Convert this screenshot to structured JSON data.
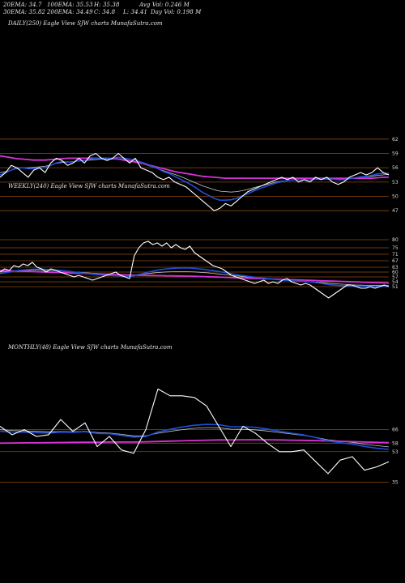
{
  "header": {
    "ema20": "20EMA: 34.7",
    "ema100": "100EMA: 35.53",
    "high": "H: 35.38",
    "avg_vol": "Avg Vol: 0.246  M",
    "ema30": "30EMA: 35.82",
    "ema200": "200EMA: 34.49",
    "close": "C: 34.8",
    "low": "L: 34.41",
    "day_vol": "Day Vol: 0.198  M"
  },
  "panels": {
    "daily_label": "DAILY(250) Eagle   View  SJW charts MunafaSutra.com",
    "weekly_label": "WEEKLY(240) Eagle   View  SJW charts MunafaSutra.com",
    "monthly_label": "MONTHLY(48) Eagle   View  SJW charts MunafaSutra.com"
  },
  "colors": {
    "background": "#000000",
    "price": "#ffffff",
    "ema_short": "#1f4fd6",
    "ema_long": "#d633d6",
    "ema_mid": "#c8c8c8",
    "level_line": "#8a4a14"
  },
  "chart_data": [
    {
      "type": "line",
      "title": "DAILY(250)",
      "ylim": [
        45,
        64
      ],
      "levels": [
        62,
        59,
        56,
        53,
        50,
        47
      ],
      "tick_labels": [
        "62",
        "59",
        "56",
        "53",
        "50",
        "47"
      ],
      "series": [
        {
          "role": "price",
          "values": [
            54,
            55,
            56.5,
            56,
            55,
            54,
            55.5,
            56,
            55,
            57,
            58,
            57.5,
            56.5,
            57,
            58,
            57,
            58.5,
            59,
            58,
            57.5,
            58,
            59,
            58,
            57,
            58,
            56,
            55.5,
            55,
            54,
            53.5,
            54,
            53,
            52.5,
            52,
            51,
            50,
            49,
            48,
            47,
            47.5,
            48.5,
            48,
            49,
            50,
            51,
            51.5,
            52,
            52.5,
            53,
            53.5,
            54,
            53.5,
            54,
            53,
            53.5,
            53,
            54,
            53.5,
            54,
            53,
            52.5,
            53,
            54,
            54.5,
            55,
            54.5,
            55,
            56,
            55,
            54.5
          ]
        },
        {
          "role": "ema-short",
          "values": [
            54.5,
            55,
            55.5,
            56,
            56,
            55.8,
            55.8,
            56,
            56,
            56.5,
            57,
            57.3,
            57.2,
            57.2,
            57.5,
            57.5,
            57.8,
            58,
            58,
            58,
            58,
            58.2,
            58,
            57.8,
            57.6,
            57.2,
            56.8,
            56.3,
            55.8,
            55.2,
            54.8,
            54.2,
            53.6,
            53,
            52.4,
            51.6,
            50.8,
            50.2,
            49.6,
            49.2,
            49.2,
            49.3,
            49.6,
            50.1,
            50.6,
            51.1,
            51.6,
            52,
            52.4,
            52.8,
            53.1,
            53.3,
            53.5,
            53.5,
            53.5,
            53.5,
            53.6,
            53.6,
            53.7,
            53.6,
            53.5,
            53.5,
            53.7,
            53.9,
            54.1,
            54.2,
            54.4,
            54.7,
            54.8,
            54.8
          ]
        },
        {
          "role": "ema-mid",
          "values": [
            55,
            55.2,
            55.5,
            55.8,
            56,
            56,
            56.1,
            56.2,
            56.3,
            56.6,
            56.9,
            57.1,
            57.2,
            57.3,
            57.4,
            57.5,
            57.6,
            57.7,
            57.8,
            57.8,
            57.8,
            57.8,
            57.7,
            57.5,
            57.3,
            57,
            56.6,
            56.2,
            55.8,
            55.4,
            55,
            54.6,
            54.2,
            53.7,
            53.2,
            52.7,
            52.2,
            51.8,
            51.4,
            51.1,
            51,
            50.9,
            51,
            51.2,
            51.5,
            51.8,
            52.1,
            52.4,
            52.7,
            53,
            53.2,
            53.3,
            53.4,
            53.5,
            53.5,
            53.5,
            53.6,
            53.6,
            53.6,
            53.6,
            53.6,
            53.6,
            53.7,
            53.8,
            54,
            54.1,
            54.2,
            54.4,
            54.5,
            54.6
          ]
        },
        {
          "role": "ema-long",
          "values": [
            58.5,
            58.3,
            58.1,
            57.9,
            57.8,
            57.7,
            57.6,
            57.6,
            57.6,
            57.7,
            57.8,
            57.9,
            58,
            58,
            58,
            58,
            58,
            58,
            58,
            58,
            57.9,
            57.8,
            57.6,
            57.4,
            57.2,
            57,
            56.7,
            56.4,
            56.1,
            55.8,
            55.5,
            55.2,
            55,
            54.8,
            54.6,
            54.4,
            54.2,
            54.1,
            54,
            53.9,
            53.8,
            53.8,
            53.8,
            53.8,
            53.8,
            53.8,
            53.8,
            53.8,
            53.8,
            53.8,
            53.8,
            53.8,
            53.8,
            53.8,
            53.8,
            53.8,
            53.8,
            53.8,
            53.8,
            53.8,
            53.8,
            53.8,
            53.8,
            53.8,
            53.8,
            53.8,
            53.8,
            53.9,
            54,
            54
          ]
        }
      ]
    },
    {
      "type": "line",
      "title": "WEEKLY(240)",
      "ylim": [
        28,
        82
      ],
      "levels": [
        80,
        75,
        71,
        67,
        63,
        60,
        57,
        54,
        51
      ],
      "tick_labels": [
        "80",
        "75",
        "71",
        "67",
        "63",
        "60",
        "57",
        "54",
        "51"
      ],
      "series": [
        {
          "role": "price",
          "values": [
            60,
            62,
            61,
            64,
            63,
            65,
            64,
            66,
            63,
            62,
            60,
            62,
            61,
            60,
            59,
            58,
            57,
            58,
            57,
            56,
            55,
            56,
            57,
            58,
            59,
            60,
            58,
            57,
            56,
            70,
            75,
            78,
            79,
            77,
            78,
            76,
            78,
            75,
            77,
            75,
            74,
            76,
            72,
            70,
            68,
            66,
            64,
            63,
            62,
            60,
            58,
            57,
            56,
            55,
            54,
            53,
            54,
            55,
            53,
            54,
            53,
            55,
            56,
            54,
            53,
            52,
            53,
            52,
            50,
            48,
            46,
            44,
            46,
            48,
            50,
            52,
            52,
            51,
            50,
            50,
            51,
            50,
            51,
            52,
            51
          ]
        },
        {
          "role": "ema-short",
          "values": [
            59,
            59.5,
            60,
            60.5,
            61,
            61.3,
            61.5,
            61.7,
            61.8,
            61.8,
            61.6,
            61.5,
            61.3,
            61,
            60.7,
            60.4,
            60,
            59.7,
            59.3,
            59,
            58.7,
            58.4,
            58.2,
            58,
            57.9,
            57.8,
            57.7,
            57.5,
            57.3,
            57.8,
            58.5,
            59.2,
            60,
            60.6,
            61.2,
            61.6,
            62,
            62.2,
            62.4,
            62.5,
            62.5,
            62.5,
            62.3,
            62,
            61.7,
            61.3,
            60.9,
            60.5,
            60,
            59.5,
            59,
            58.5,
            58,
            57.6,
            57.2,
            56.8,
            56.5,
            56.2,
            55.9,
            55.6,
            55.3,
            55.1,
            54.9,
            54.7,
            54.5,
            54.3,
            54.1,
            53.9,
            53.6,
            53.2,
            52.8,
            52.3,
            52,
            51.8,
            51.6,
            51.5,
            51.4,
            51.3,
            51.2,
            51.1,
            51.1,
            51.1,
            51.1,
            51.2,
            51.2
          ]
        },
        {
          "role": "ema-mid",
          "values": [
            60,
            60.2,
            60.4,
            60.6,
            60.8,
            61,
            61.1,
            61.2,
            61.2,
            61.2,
            61.1,
            61,
            60.9,
            60.7,
            60.5,
            60.3,
            60.1,
            59.9,
            59.7,
            59.5,
            59.3,
            59.1,
            58.9,
            58.7,
            58.6,
            58.5,
            58.4,
            58.3,
            58.2,
            58.3,
            58.5,
            58.8,
            59.1,
            59.4,
            59.7,
            59.9,
            60.1,
            60.2,
            60.3,
            60.3,
            60.3,
            60.2,
            60.1,
            59.9,
            59.7,
            59.5,
            59.2,
            58.9,
            58.6,
            58.3,
            58,
            57.7,
            57.4,
            57.1,
            56.8,
            56.5,
            56.2,
            56,
            55.8,
            55.6,
            55.4,
            55.2,
            55,
            54.8,
            54.6,
            54.4,
            54.2,
            54,
            53.8,
            53.6,
            53.4,
            53.1,
            52.9,
            52.7,
            52.5,
            52.3,
            52.1,
            52,
            51.9,
            51.8,
            51.7,
            51.7,
            51.7,
            51.7,
            51.7
          ]
        },
        {
          "role": "ema-long",
          "values": [
            61,
            60.9,
            60.8,
            60.7,
            60.6,
            60.5,
            60.4,
            60.3,
            60.2,
            60.1,
            60,
            59.9,
            59.8,
            59.7,
            59.6,
            59.5,
            59.4,
            59.3,
            59.2,
            59.1,
            59,
            58.9,
            58.8,
            58.7,
            58.6,
            58.5,
            58.4,
            58.3,
            58.2,
            58.1,
            58,
            58,
            57.9,
            57.9,
            57.8,
            57.8,
            57.7,
            57.7,
            57.6,
            57.6,
            57.5,
            57.5,
            57.4,
            57.3,
            57.2,
            57.1,
            57,
            56.9,
            56.8,
            56.7,
            56.6,
            56.5,
            56.4,
            56.3,
            56.2,
            56.1,
            56,
            55.9,
            55.8,
            55.7,
            55.6,
            55.5,
            55.4,
            55.3,
            55.2,
            55.1,
            55,
            54.9,
            54.8,
            54.7,
            54.6,
            54.5,
            54.4,
            54.3,
            54.2,
            54.1,
            54,
            53.9,
            53.8,
            53.7,
            53.6,
            53.5,
            53.4,
            53.3,
            53.2
          ]
        }
      ]
    },
    {
      "type": "line",
      "title": "MONTHLY(48)",
      "ylim": [
        28,
        95
      ],
      "levels": [
        66,
        58,
        53,
        35
      ],
      "tick_labels": [
        "66",
        "58",
        "53",
        "35"
      ],
      "series": [
        {
          "role": "price",
          "values": [
            68,
            63,
            66,
            62,
            63,
            72,
            65,
            70,
            56,
            62,
            54,
            52,
            66,
            90,
            86,
            86,
            85,
            80,
            68,
            56,
            68,
            64,
            58,
            53,
            53,
            54,
            47,
            40,
            48,
            50,
            42,
            44,
            47
          ]
        },
        {
          "role": "ema-short",
          "values": [
            65,
            64.6,
            64.5,
            64.2,
            64,
            64.5,
            64.4,
            64.8,
            63.8,
            63.6,
            62.6,
            61.6,
            62,
            64.6,
            66.2,
            67.6,
            68.6,
            69.1,
            68.9,
            67.7,
            67.7,
            67.4,
            66.4,
            65.1,
            63.9,
            62.9,
            61.3,
            59.3,
            58.3,
            57.5,
            56.1,
            55,
            54.3
          ]
        },
        {
          "role": "ema-mid",
          "values": [
            66,
            65.5,
            65.3,
            65,
            64.7,
            64.9,
            64.8,
            65,
            64.3,
            64,
            63.2,
            62.3,
            62.4,
            63.9,
            65,
            66,
            66.8,
            67.2,
            67.1,
            66.3,
            66.2,
            65.9,
            65.2,
            64.3,
            63.4,
            62.6,
            61.4,
            60,
            59.2,
            58.5,
            57.4,
            56.5,
            55.8
          ]
        },
        {
          "role": "ema-long",
          "values": [
            58,
            58.1,
            58.2,
            58.2,
            58.3,
            58.4,
            58.5,
            58.6,
            58.6,
            58.7,
            58.7,
            58.7,
            58.8,
            59,
            59.2,
            59.4,
            59.6,
            59.8,
            59.9,
            59.9,
            60,
            60,
            60,
            59.9,
            59.8,
            59.7,
            59.5,
            59.3,
            59.1,
            58.9,
            58.7,
            58.5,
            58.3
          ]
        }
      ]
    }
  ]
}
